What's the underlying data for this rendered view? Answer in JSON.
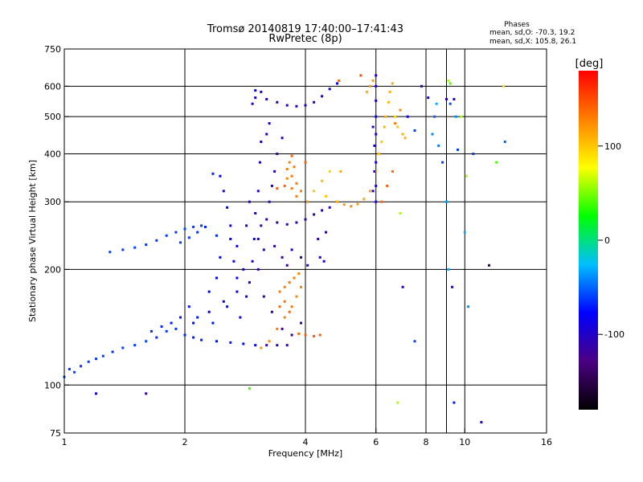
{
  "chart_data": {
    "type": "scatter",
    "title": "Tromsø 20140819 17:40:00–17:41:43",
    "subtitle": "RwPretec (8p)",
    "phases_heading": "Phases",
    "phases_stats": [
      "mean, sd,O: -70.3, 19.2",
      "mean, sd,X: 105.8, 26.1"
    ],
    "xlabel": "Frequency [MHz]",
    "ylabel": "Stationary phase Virtual Height [km]",
    "x_scale": "log",
    "y_scale": "log",
    "xlim": [
      1,
      16
    ],
    "ylim": [
      75,
      750
    ],
    "x_ticks": [
      1,
      2,
      4,
      6,
      8,
      10,
      16
    ],
    "y_ticks": [
      75,
      100,
      200,
      300,
      400,
      500,
      600,
      750
    ],
    "x_grid": [
      2,
      4,
      6,
      8,
      9,
      10
    ],
    "y_grid": [
      100,
      200,
      300,
      400,
      500,
      600
    ],
    "grid": true,
    "colorbar": {
      "label": "[deg]",
      "range": [
        -180,
        180
      ],
      "ticks": [
        100,
        0,
        -100
      ],
      "colors": [
        "#000000",
        "#4b0082",
        "#0000ff",
        "#00bfff",
        "#00ff00",
        "#ffff00",
        "#ff8000",
        "#ff0000"
      ]
    },
    "series": [
      {
        "points": [
          [
            1.0,
            105,
            -60
          ],
          [
            1.03,
            110,
            -62
          ],
          [
            1.06,
            108,
            -58
          ],
          [
            1.1,
            112,
            -65
          ],
          [
            1.15,
            115,
            -60
          ],
          [
            1.2,
            117,
            -63
          ],
          [
            1.25,
            119,
            -61
          ],
          [
            1.32,
            122,
            -64
          ],
          [
            1.4,
            125,
            -60
          ],
          [
            1.5,
            127,
            -62
          ],
          [
            1.6,
            130,
            -58
          ],
          [
            1.7,
            133,
            -65
          ],
          [
            1.8,
            138,
            -60
          ],
          [
            1.9,
            140,
            -63
          ],
          [
            2.0,
            135,
            -66
          ],
          [
            2.1,
            133,
            -70
          ],
          [
            2.2,
            131,
            -68
          ],
          [
            2.4,
            130,
            -72
          ],
          [
            2.6,
            129,
            -70
          ],
          [
            2.8,
            128,
            -75
          ],
          [
            3.0,
            127,
            -80
          ],
          [
            2.1,
            145,
            -75
          ],
          [
            2.3,
            155,
            -80
          ],
          [
            2.5,
            165,
            -85
          ],
          [
            2.7,
            175,
            -90
          ],
          [
            2.9,
            185,
            -95
          ],
          [
            2.95,
            210,
            -95
          ],
          [
            2.98,
            240,
            -90
          ],
          [
            3.0,
            280,
            -100
          ],
          [
            3.05,
            320,
            -95
          ],
          [
            3.08,
            380,
            -100
          ],
          [
            3.1,
            430,
            -90
          ],
          [
            2.8,
            200,
            -85
          ],
          [
            2.7,
            230,
            -80
          ],
          [
            2.6,
            260,
            -85
          ],
          [
            2.55,
            290,
            -80
          ],
          [
            2.5,
            320,
            -75
          ],
          [
            2.45,
            350,
            -80
          ],
          [
            1.3,
            222,
            -60
          ],
          [
            1.4,
            225,
            -62
          ],
          [
            1.5,
            228,
            -58
          ],
          [
            1.6,
            232,
            -61
          ],
          [
            1.7,
            238,
            -63
          ],
          [
            1.8,
            245,
            -60
          ],
          [
            1.9,
            250,
            -62
          ],
          [
            2.0,
            255,
            -58
          ],
          [
            2.1,
            258,
            -60
          ],
          [
            2.2,
            260,
            -62
          ],
          [
            2.4,
            245,
            -64
          ],
          [
            2.35,
            355,
            -66
          ],
          [
            1.95,
            235,
            -60
          ],
          [
            2.05,
            242,
            -62
          ],
          [
            2.15,
            250,
            -64
          ],
          [
            2.25,
            258,
            -66
          ],
          [
            2.15,
            150,
            -70
          ],
          [
            2.35,
            145,
            -72
          ],
          [
            2.55,
            160,
            -74
          ],
          [
            2.75,
            150,
            -76
          ],
          [
            2.85,
            170,
            -78
          ],
          [
            2.7,
            190,
            -80
          ],
          [
            2.65,
            210,
            -82
          ],
          [
            2.4,
            190,
            -80
          ],
          [
            2.3,
            175,
            -78
          ],
          [
            2.05,
            160,
            -72
          ],
          [
            1.95,
            150,
            -70
          ],
          [
            1.85,
            145,
            -68
          ],
          [
            1.75,
            142,
            -66
          ],
          [
            1.65,
            138,
            -64
          ],
          [
            2.45,
            215,
            -76
          ],
          [
            2.6,
            240,
            -78
          ],
          [
            2.85,
            260,
            -88
          ],
          [
            2.9,
            300,
            -92
          ],
          [
            3.2,
            270,
            -110
          ],
          [
            3.4,
            265,
            -115
          ],
          [
            3.6,
            262,
            -112
          ],
          [
            3.8,
            265,
            -110
          ],
          [
            4.0,
            270,
            -108
          ],
          [
            4.2,
            278,
            -105
          ],
          [
            4.4,
            285,
            -100
          ],
          [
            4.6,
            290,
            -95
          ],
          [
            3.1,
            260,
            -108
          ],
          [
            3.25,
            300,
            -110
          ],
          [
            3.3,
            330,
            -105
          ],
          [
            3.35,
            360,
            -100
          ],
          [
            3.4,
            400,
            -110
          ],
          [
            3.5,
            440,
            -105
          ],
          [
            3.2,
            450,
            -100
          ],
          [
            3.25,
            480,
            -95
          ],
          [
            2.95,
            540,
            -100
          ],
          [
            3.0,
            560,
            -98
          ],
          [
            3.1,
            580,
            -100
          ],
          [
            3.2,
            555,
            -105
          ],
          [
            3.4,
            545,
            -102
          ],
          [
            3.6,
            535,
            -100
          ],
          [
            3.8,
            532,
            -98
          ],
          [
            4.0,
            535,
            -96
          ],
          [
            4.2,
            545,
            -95
          ],
          [
            4.4,
            565,
            -90
          ],
          [
            4.6,
            590,
            -85
          ],
          [
            4.8,
            610,
            -80
          ],
          [
            3.05,
            240,
            -100
          ],
          [
            3.35,
            230,
            -110
          ],
          [
            3.5,
            215,
            -115
          ],
          [
            3.6,
            205,
            -112
          ],
          [
            3.7,
            225,
            -100
          ],
          [
            3.9,
            215,
            -105
          ],
          [
            4.05,
            205,
            -100
          ],
          [
            3.2,
            127,
            -110
          ],
          [
            3.4,
            127,
            -115
          ],
          [
            3.6,
            127,
            -112
          ],
          [
            3.15,
            170,
            -110
          ],
          [
            3.3,
            155,
            -115
          ],
          [
            3.5,
            140,
            -120
          ],
          [
            3.7,
            135,
            -118
          ],
          [
            3.9,
            145,
            -112
          ],
          [
            3.05,
            200,
            -110
          ],
          [
            3.15,
            225,
            -108
          ],
          [
            4.5,
            250,
            -110
          ],
          [
            4.3,
            240,
            -112
          ],
          [
            4.35,
            215,
            -100
          ],
          [
            4.45,
            210,
            -90
          ]
        ]
      },
      {
        "points": [
          [
            3.1,
            125,
            120
          ],
          [
            3.25,
            130,
            125
          ],
          [
            3.4,
            140,
            130
          ],
          [
            3.55,
            150,
            128
          ],
          [
            3.7,
            160,
            132
          ],
          [
            3.8,
            170,
            126
          ],
          [
            3.9,
            180,
            130
          ],
          [
            3.45,
            175,
            130
          ],
          [
            3.55,
            180,
            128
          ],
          [
            3.65,
            185,
            132
          ],
          [
            3.75,
            190,
            130
          ],
          [
            3.85,
            195,
            128
          ],
          [
            3.6,
            365,
            130
          ],
          [
            3.7,
            350,
            132
          ],
          [
            3.8,
            335,
            134
          ],
          [
            3.9,
            320,
            130
          ],
          [
            3.65,
            380,
            128
          ],
          [
            3.75,
            370,
            130
          ],
          [
            3.6,
            345,
            126
          ],
          [
            3.7,
            325,
            132
          ],
          [
            3.8,
            310,
            130
          ],
          [
            4.05,
            300,
            120
          ],
          [
            3.85,
            136,
            140
          ],
          [
            4.0,
            135,
            142
          ],
          [
            4.2,
            134,
            145
          ],
          [
            4.35,
            135,
            143
          ],
          [
            4.2,
            320,
            100
          ],
          [
            4.4,
            340,
            105
          ],
          [
            4.6,
            360,
            95
          ],
          [
            4.5,
            310,
            100
          ],
          [
            4.8,
            300,
            110
          ],
          [
            5.0,
            295,
            120
          ],
          [
            5.2,
            292,
            125
          ],
          [
            5.4,
            296,
            118
          ],
          [
            5.6,
            305,
            112
          ],
          [
            5.8,
            320,
            115
          ],
          [
            5.7,
            580,
            110
          ],
          [
            5.8,
            600,
            120
          ],
          [
            5.9,
            620,
            115
          ],
          [
            6.0,
            360,
            110
          ],
          [
            6.1,
            400,
            105
          ],
          [
            6.2,
            430,
            100
          ],
          [
            6.3,
            470,
            108
          ],
          [
            6.35,
            500,
            112
          ],
          [
            6.45,
            545,
            105
          ],
          [
            6.5,
            580,
            110
          ],
          [
            6.6,
            610,
            112
          ],
          [
            6.7,
            500,
            95
          ],
          [
            6.8,
            470,
            100
          ],
          [
            7.0,
            450,
            110
          ],
          [
            7.1,
            440,
            105
          ],
          [
            6.2,
            300,
            140
          ],
          [
            6.4,
            330,
            145
          ],
          [
            6.6,
            360,
            138
          ],
          [
            6.7,
            480,
            130
          ],
          [
            6.9,
            520,
            125
          ],
          [
            5.5,
            640,
            150
          ],
          [
            4.85,
            620,
            140
          ],
          [
            4.9,
            360,
            110
          ],
          [
            4.0,
            380,
            140
          ],
          [
            3.7,
            395,
            145
          ],
          [
            3.55,
            330,
            140
          ],
          [
            3.4,
            325,
            145
          ],
          [
            3.45,
            160,
            140
          ],
          [
            3.55,
            165,
            135
          ],
          [
            3.65,
            155,
            138
          ],
          [
            12.5,
            600,
            90
          ]
        ]
      },
      {
        "points": [
          [
            6.0,
            300,
            -100
          ],
          [
            6.0,
            330,
            -95
          ],
          [
            6.0,
            380,
            -90
          ],
          [
            6.0,
            450,
            -100
          ],
          [
            6.0,
            500,
            -98
          ],
          [
            6.0,
            550,
            -95
          ],
          [
            6.0,
            600,
            -100
          ],
          [
            6.0,
            640,
            -95
          ],
          [
            5.9,
            470,
            -92
          ],
          [
            5.95,
            420,
            -96
          ],
          [
            5.95,
            360,
            -94
          ],
          [
            5.9,
            320,
            -90
          ]
        ]
      },
      {
        "points": [
          [
            8.3,
            450,
            -40
          ],
          [
            8.4,
            500,
            -50
          ],
          [
            8.5,
            540,
            -30
          ],
          [
            8.6,
            420,
            -45
          ],
          [
            8.8,
            380,
            -60
          ],
          [
            9.0,
            300,
            -35
          ],
          [
            9.1,
            200,
            -30
          ],
          [
            9.2,
            540,
            -55
          ],
          [
            9.5,
            500,
            -40
          ],
          [
            9.3,
            180,
            -100
          ],
          [
            9.4,
            90,
            -70
          ],
          [
            10.0,
            250,
            -30
          ],
          [
            10.2,
            160,
            -40
          ],
          [
            10.5,
            400,
            -60
          ],
          [
            11.0,
            80,
            -100
          ],
          [
            12.0,
            380,
            40
          ],
          [
            9.8,
            500,
            60
          ],
          [
            7.2,
            500,
            -80
          ],
          [
            7.5,
            460,
            -60
          ],
          [
            7.0,
            180,
            -100
          ],
          [
            7.5,
            130,
            -60
          ],
          [
            6.8,
            90,
            60
          ],
          [
            6.9,
            280,
            60
          ],
          [
            7.8,
            600,
            -110
          ],
          [
            8.1,
            560,
            -90
          ],
          [
            9.2,
            610,
            40
          ],
          [
            9.0,
            555,
            -100
          ],
          [
            9.6,
            410,
            -60
          ],
          [
            10.1,
            350,
            60
          ],
          [
            11.5,
            205,
            -140
          ],
          [
            1.2,
            95,
            -90
          ],
          [
            1.6,
            95,
            -115
          ],
          [
            2.9,
            98,
            40
          ],
          [
            3.0,
            585,
            -80
          ],
          [
            9.1,
            620,
            60
          ],
          [
            9.4,
            555,
            -95
          ],
          [
            12.6,
            430,
            -50
          ]
        ]
      }
    ]
  }
}
